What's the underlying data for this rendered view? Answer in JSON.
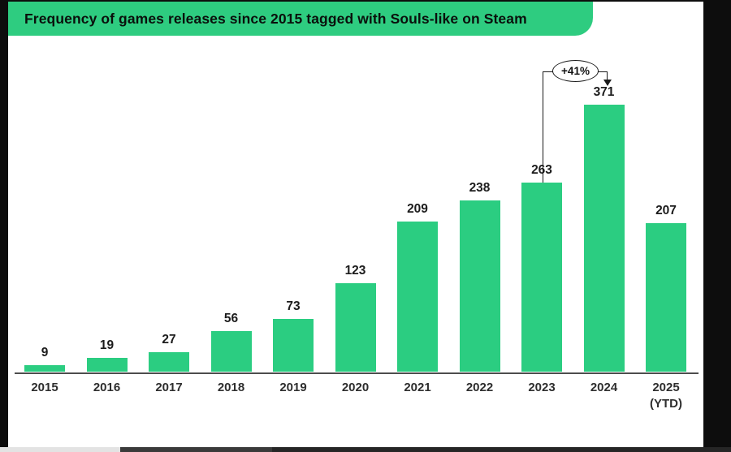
{
  "header": {
    "title": "Frequency of games releases since 2015 tagged with Souls-like on Steam"
  },
  "colors": {
    "banner_green": "#2ecc80",
    "bar_green": "#2bcd81"
  },
  "chart_data": {
    "type": "bar",
    "title": "Frequency of games releases since 2015 tagged with Souls-like on Steam",
    "categories": [
      "2015",
      "2016",
      "2017",
      "2018",
      "2019",
      "2020",
      "2021",
      "2022",
      "2023",
      "2024",
      "2025"
    ],
    "last_category_note": "(YTD)",
    "values": [
      9,
      19,
      27,
      56,
      73,
      123,
      209,
      238,
      263,
      371,
      207
    ],
    "xlabel": "",
    "ylabel": "",
    "ylim": [
      0,
      400
    ],
    "grid": false,
    "legend": false,
    "bar_labels_shown": true,
    "annotation": {
      "label": "+41%",
      "from_category": "2023",
      "to_category": "2024"
    }
  }
}
